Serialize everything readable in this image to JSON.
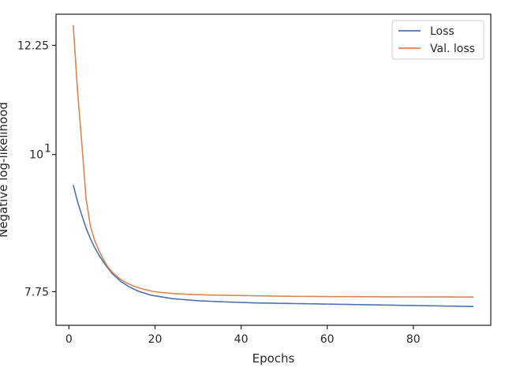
{
  "chart_data": {
    "type": "line",
    "xlabel": "Epochs",
    "ylabel": "Negative log-likelihood",
    "xlim": [
      -3,
      98
    ],
    "ylim": [
      7.28,
      12.98
    ],
    "yscale": "log",
    "grid": false,
    "legend_position": "top-right",
    "x_ticks": [
      0,
      20,
      40,
      60,
      80
    ],
    "x_tick_labels": [
      "0",
      "20",
      "40",
      "60",
      "80"
    ],
    "y_ticks": [
      7.75,
      10,
      12.25
    ],
    "y_tick_labels": [
      "7.75",
      "10",
      "12.25"
    ],
    "y_tick_exponent": "1",
    "x": [
      1,
      2,
      3,
      4,
      5,
      6,
      7,
      8,
      9,
      10,
      11,
      12,
      13,
      14,
      15,
      16,
      17,
      18,
      19,
      20,
      21,
      22,
      23,
      24,
      25,
      26,
      27,
      28,
      29,
      30,
      31,
      32,
      33,
      34,
      35,
      36,
      37,
      38,
      39,
      40,
      41,
      42,
      43,
      44,
      45,
      46,
      47,
      48,
      49,
      50,
      51,
      52,
      53,
      54,
      55,
      56,
      57,
      58,
      59,
      60,
      61,
      62,
      63,
      64,
      65,
      66,
      67,
      68,
      69,
      70,
      71,
      72,
      73,
      74,
      75,
      76,
      77,
      78,
      79,
      80,
      81,
      82,
      83,
      84,
      85,
      86,
      87,
      88,
      89,
      90,
      91,
      92,
      93,
      94
    ],
    "series": [
      {
        "name": "Loss",
        "color": "#4c72b0",
        "values": [
          9.45,
          9.16,
          8.93,
          8.72,
          8.55,
          8.41,
          8.29,
          8.19,
          8.1,
          8.02,
          7.96,
          7.9,
          7.86,
          7.82,
          7.79,
          7.76,
          7.74,
          7.72,
          7.7,
          7.69,
          7.68,
          7.67,
          7.66,
          7.65,
          7.645,
          7.64,
          7.635,
          7.63,
          7.625,
          7.62,
          7.618,
          7.615,
          7.612,
          7.61,
          7.607,
          7.605,
          7.602,
          7.6,
          7.598,
          7.596,
          7.594,
          7.592,
          7.59,
          7.589,
          7.588,
          7.587,
          7.586,
          7.585,
          7.584,
          7.583,
          7.582,
          7.581,
          7.58,
          7.579,
          7.578,
          7.577,
          7.576,
          7.575,
          7.574,
          7.573,
          7.572,
          7.571,
          7.57,
          7.569,
          7.568,
          7.567,
          7.566,
          7.565,
          7.564,
          7.563,
          7.562,
          7.561,
          7.56,
          7.559,
          7.558,
          7.557,
          7.556,
          7.555,
          7.554,
          7.553,
          7.552,
          7.551,
          7.55,
          7.549,
          7.548,
          7.547,
          7.546,
          7.545,
          7.544,
          7.543,
          7.542,
          7.541,
          7.54,
          7.539
        ]
      },
      {
        "name": "Val. loss",
        "color": "#dd8452",
        "values": [
          12.72,
          11.25,
          10.2,
          9.2,
          8.75,
          8.52,
          8.36,
          8.23,
          8.12,
          8.04,
          7.98,
          7.93,
          7.89,
          7.86,
          7.83,
          7.81,
          7.79,
          7.775,
          7.76,
          7.75,
          7.74,
          7.735,
          7.73,
          7.725,
          7.72,
          7.717,
          7.714,
          7.711,
          7.709,
          7.707,
          7.705,
          7.703,
          7.701,
          7.7,
          7.699,
          7.698,
          7.697,
          7.696,
          7.695,
          7.694,
          7.693,
          7.692,
          7.691,
          7.69,
          7.689,
          7.688,
          7.687,
          7.686,
          7.685,
          7.684,
          7.684,
          7.683,
          7.683,
          7.682,
          7.682,
          7.681,
          7.681,
          7.68,
          7.68,
          7.68,
          7.679,
          7.679,
          7.679,
          7.678,
          7.678,
          7.678,
          7.678,
          7.677,
          7.677,
          7.677,
          7.677,
          7.676,
          7.676,
          7.676,
          7.676,
          7.676,
          7.675,
          7.675,
          7.675,
          7.675,
          7.675,
          7.675,
          7.674,
          7.674,
          7.674,
          7.674,
          7.674,
          7.674,
          7.674,
          7.673,
          7.673,
          7.673,
          7.673,
          7.673
        ]
      }
    ]
  }
}
